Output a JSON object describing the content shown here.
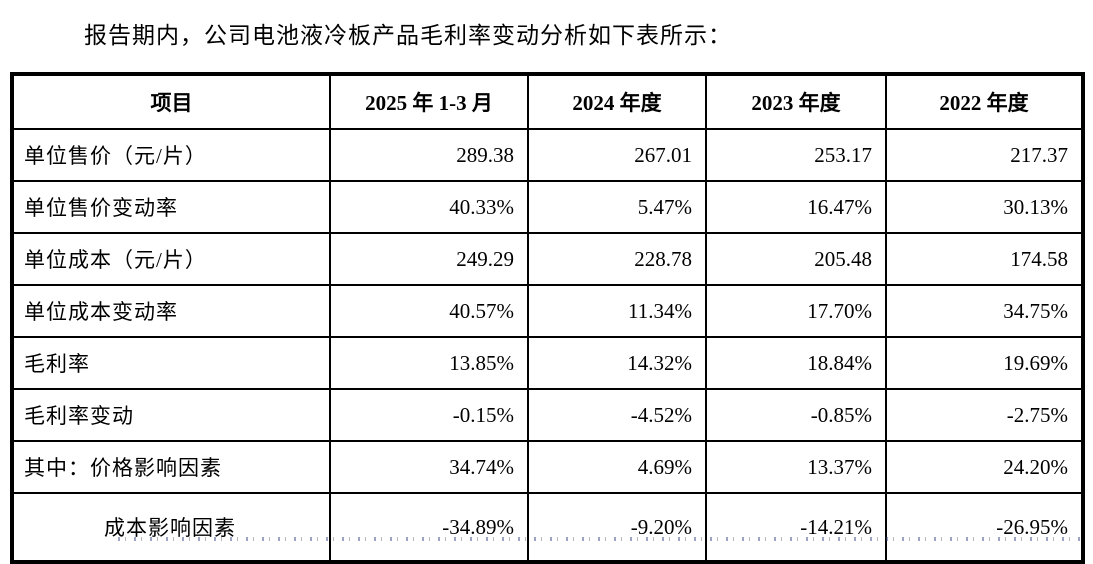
{
  "title": "报告期内，公司电池液冷板产品毛利率变动分析如下表所示：",
  "table": {
    "columns": [
      "项目",
      "2025 年 1-3 月",
      "2024 年度",
      "2023 年度",
      "2022 年度"
    ],
    "rows": [
      {
        "label": "单位售价（元/片）",
        "indent": false,
        "values": [
          "289.38",
          "267.01",
          "253.17",
          "217.37"
        ]
      },
      {
        "label": "单位售价变动率",
        "indent": false,
        "values": [
          "40.33%",
          "5.47%",
          "16.47%",
          "30.13%"
        ]
      },
      {
        "label": "单位成本（元/片）",
        "indent": false,
        "values": [
          "249.29",
          "228.78",
          "205.48",
          "174.58"
        ]
      },
      {
        "label": "单位成本变动率",
        "indent": false,
        "values": [
          "40.57%",
          "11.34%",
          "17.70%",
          "34.75%"
        ]
      },
      {
        "label": "毛利率",
        "indent": false,
        "values": [
          "13.85%",
          "14.32%",
          "18.84%",
          "19.69%"
        ]
      },
      {
        "label": "毛利率变动",
        "indent": false,
        "values": [
          "-0.15%",
          "-4.52%",
          "-0.85%",
          "-2.75%"
        ]
      },
      {
        "label": "其中：价格影响因素",
        "indent": false,
        "values": [
          "34.74%",
          "4.69%",
          "13.37%",
          "24.20%"
        ]
      },
      {
        "label": "成本影响因素",
        "indent": true,
        "values": [
          "-34.89%",
          "-9.20%",
          "-14.21%",
          "-26.95%"
        ]
      }
    ]
  }
}
